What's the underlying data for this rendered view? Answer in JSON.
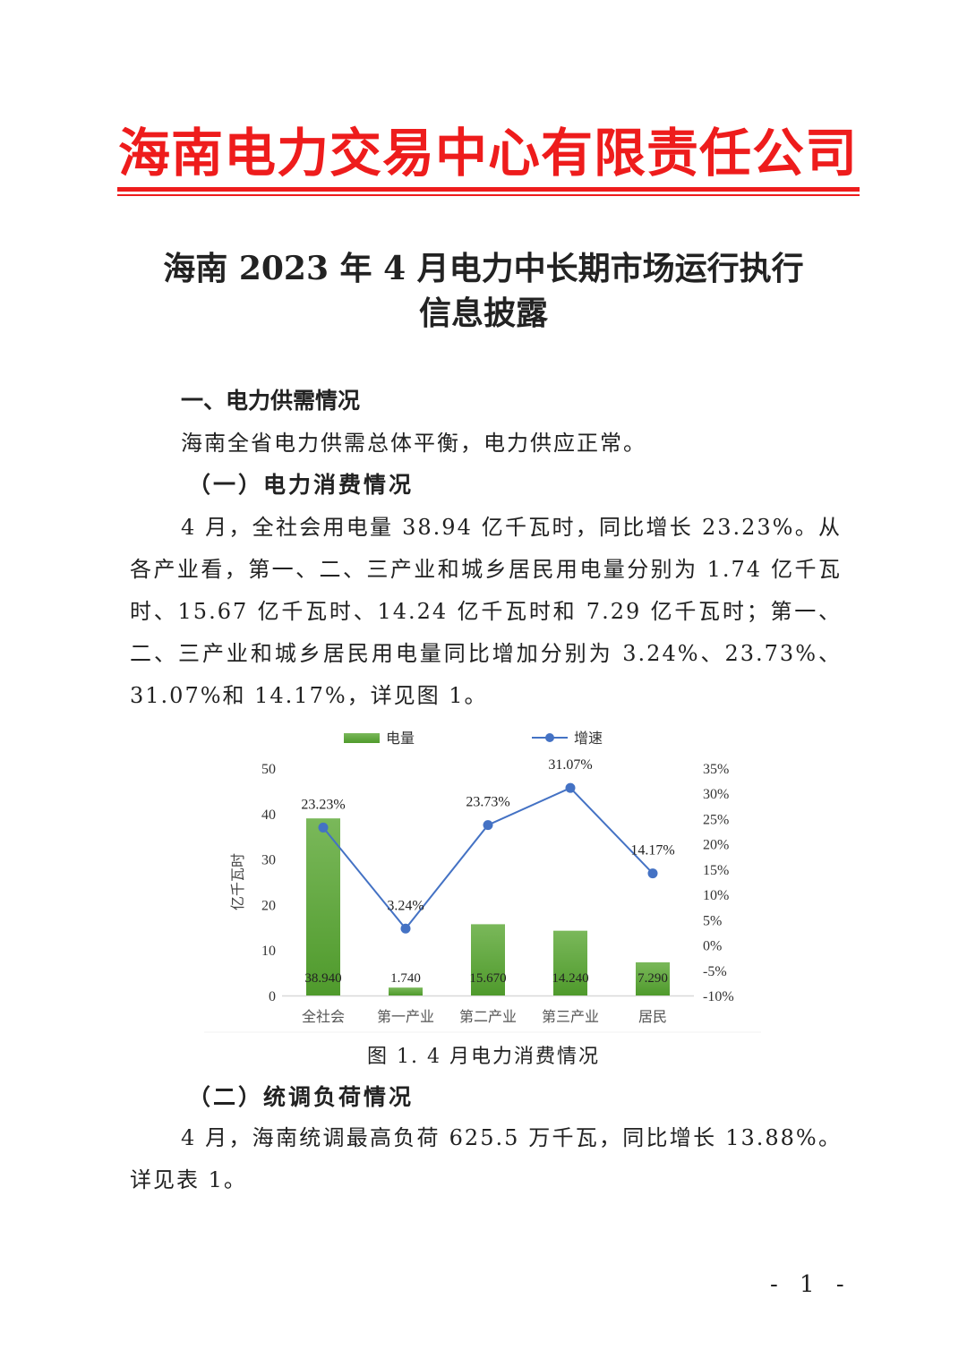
{
  "header": {
    "organization": "海南电力交易中心有限责任公司",
    "brand_color": "#ee1c1c"
  },
  "document": {
    "title_line1": "海南 2023 年 4 月电力中长期市场运行执行",
    "title_line2": "信息披露",
    "section1_heading": "一、电力供需情况",
    "section1_text": "海南全省电力供需总体平衡，电力供应正常。",
    "sub1_heading": "（一）电力消费情况",
    "sub1_text": "4 月，全社会用电量 38.94 亿千瓦时，同比增长 23.23%。从各产业看，第一、二、三产业和城乡居民用电量分别为 1.74 亿千瓦时、15.67 亿千瓦时、14.24 亿千瓦时和 7.29 亿千瓦时；第一、二、三产业和城乡居民用电量同比增加分别为 3.24%、23.73%、31.07%和 14.17%，详见图 1。",
    "figure_caption": "图 1. 4 月电力消费情况",
    "sub2_heading": "（二）统调负荷情况",
    "sub2_text": "4 月，海南统调最高负荷 625.5 万千瓦，同比增长 13.88%。详见表 1。",
    "page_number": "- 1 -"
  },
  "chart_data": {
    "type": "bar+line",
    "categories": [
      "全社会",
      "第一产业",
      "第二产业",
      "第三产业",
      "居民"
    ],
    "series": [
      {
        "name": "电量",
        "type": "bar",
        "axis": "left",
        "values": [
          38.94,
          1.74,
          15.67,
          14.24,
          7.29
        ],
        "labels": [
          "38.940",
          "1.740",
          "15.670",
          "14.240",
          "7.290"
        ],
        "color": "#5fa83a"
      },
      {
        "name": "增速",
        "type": "line",
        "axis": "right",
        "values": [
          23.23,
          3.24,
          23.73,
          31.07,
          14.17
        ],
        "labels": [
          "23.23%",
          "3.24%",
          "23.73%",
          "31.07%",
          "14.17%"
        ],
        "color": "#4472c4"
      }
    ],
    "ylabel": "亿千瓦时",
    "ylim": [
      0,
      50
    ],
    "yticks": [
      "0",
      "10",
      "20",
      "30",
      "40",
      "50"
    ],
    "y2lim": [
      -10,
      35
    ],
    "y2ticks": [
      "-10%",
      "-5%",
      "0%",
      "5%",
      "10%",
      "15%",
      "20%",
      "25%",
      "30%",
      "35%"
    ],
    "grid": false,
    "legend": "top"
  }
}
